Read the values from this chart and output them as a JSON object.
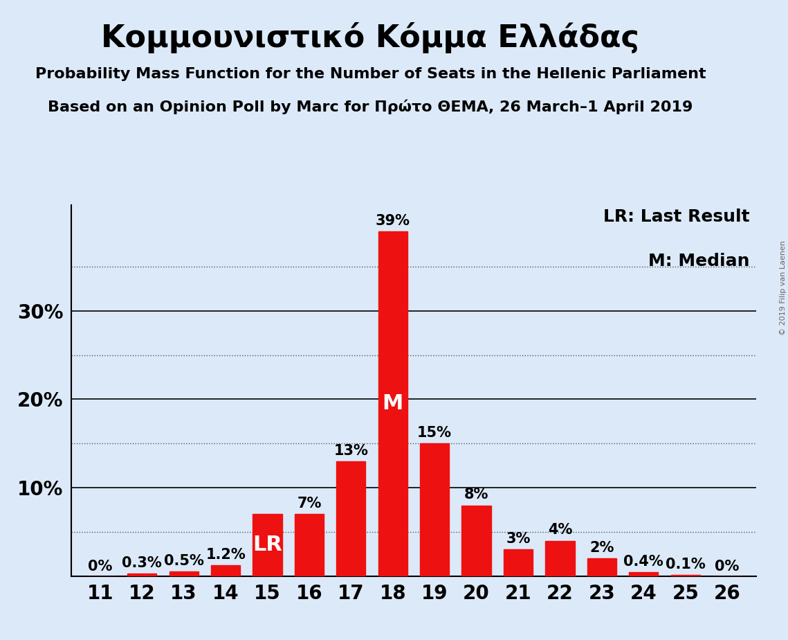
{
  "title": "Κομμουνιστικό Κόμμα Ελλάδας",
  "subtitle1": "Probability Mass Function for the Number of Seats in the Hellenic Parliament",
  "subtitle2": "Based on an Opinion Poll by Marc for Πρώτο ΘΕΜΑ, 26 March–1 April 2019",
  "copyright": "© 2019 Filip van Laenen",
  "seats": [
    11,
    12,
    13,
    14,
    15,
    16,
    17,
    18,
    19,
    20,
    21,
    22,
    23,
    24,
    25,
    26
  ],
  "probabilities": [
    0.0,
    0.3,
    0.5,
    1.2,
    7.0,
    7.0,
    13.0,
    39.0,
    15.0,
    8.0,
    3.0,
    4.0,
    2.0,
    0.4,
    0.1,
    0.0
  ],
  "bar_labels": [
    "0%",
    "0.3%",
    "0.5%",
    "1.2%",
    "LR",
    "7%",
    "13%",
    "39%",
    "15%",
    "8%",
    "3%",
    "4%",
    "2%",
    "0.4%",
    "0.1%",
    "0%"
  ],
  "bar_color": "#ee1111",
  "background_color": "#dce9f8",
  "text_color": "#000000",
  "lr_seat": 15,
  "median_seat": 18,
  "ylim_max": 42,
  "solid_lines": [
    10,
    20,
    30
  ],
  "dotted_lines": [
    5,
    15,
    25,
    35
  ],
  "legend_lr": "LR: Last Result",
  "legend_m": "M: Median",
  "bar_width": 0.7,
  "title_fontsize": 32,
  "subtitle_fontsize": 16,
  "axis_tick_fontsize": 20,
  "bar_label_fontsize": 15,
  "lr_m_fontsize": 22,
  "legend_fontsize": 18,
  "copyright_fontsize": 8
}
